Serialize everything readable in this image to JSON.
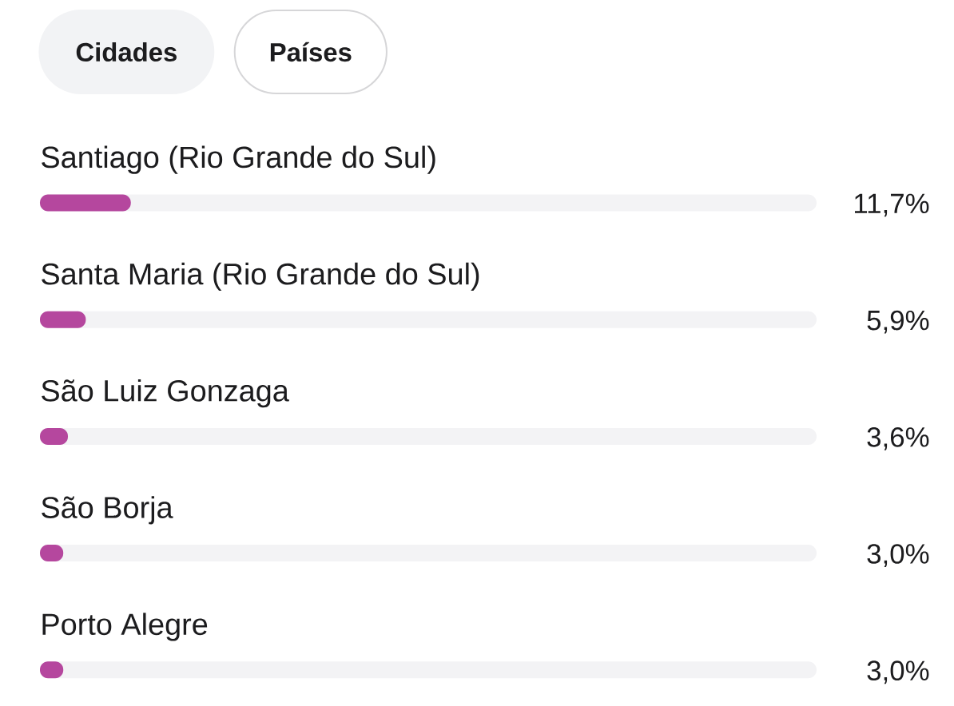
{
  "chart_data": {
    "type": "bar",
    "orientation": "horizontal",
    "annotations": [
      "Cidades",
      "Países"
    ],
    "categories": [
      "Santiago (Rio Grande do Sul)",
      "Santa Maria (Rio Grande do Sul)",
      "São Luiz Gonzaga",
      "São Borja",
      "Porto Alegre"
    ],
    "values": [
      11.7,
      5.9,
      3.6,
      3.0,
      3.0
    ],
    "value_labels": [
      "11,7%",
      "5,9%",
      "3,6%",
      "3,0%",
      "3,0%"
    ],
    "color": "#b5479e",
    "xlim": [
      0,
      100
    ],
    "tick_labels": "y"
  }
}
